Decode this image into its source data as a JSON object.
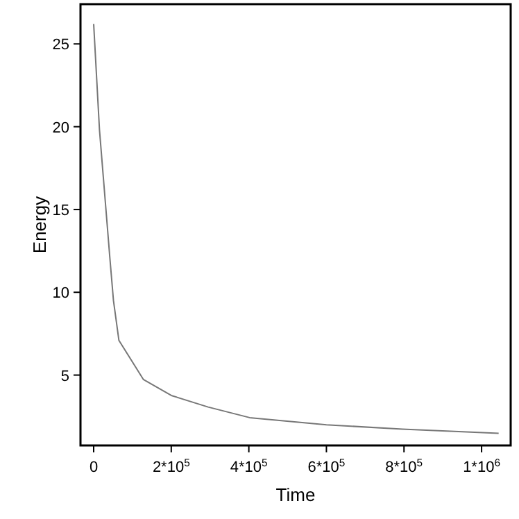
{
  "chart_data": {
    "type": "line",
    "xlabel": "Time",
    "ylabel": "Energy",
    "xlim": [
      -34000,
      1075000
    ],
    "ylim": [
      0.75,
      27.4
    ],
    "xticks": [
      0,
      {
        "value": 200000,
        "label": "2*10$^{5}$"
      },
      {
        "value": 400000,
        "label": "4*10$^{5}$"
      },
      {
        "value": 600000,
        "label": "6*10$^{5}$"
      },
      {
        "value": 800000,
        "label": "8*10$^{5}$"
      },
      {
        "value": 1000000,
        "label": "1*10$^{6}$"
      }
    ],
    "yticks": [
      5,
      10,
      15,
      20,
      25
    ],
    "grid": false,
    "marker": "none",
    "line_style": "solid",
    "series": [
      {
        "color": "#777777",
        "x": [
          0,
          15000,
          42000,
          51000,
          65000,
          128000,
          200000,
          295000,
          402000,
          600000,
          796000,
          1044000
        ],
        "values": [
          26.2,
          19.8,
          12.0,
          9.5,
          7.1,
          4.74,
          3.77,
          3.07,
          2.43,
          2.0,
          1.73,
          1.48
        ]
      }
    ]
  }
}
